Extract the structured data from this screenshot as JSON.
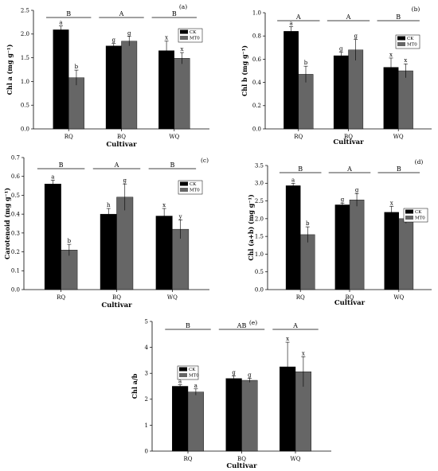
{
  "colors": {
    "CK": "#000000",
    "MT0": "#666666"
  },
  "chart_data": [
    {
      "type": "bar",
      "panel": "(a)",
      "ylabel": "Chl a (mg g⁻¹)",
      "xlabel": "Cultivar",
      "categories": [
        "RQ",
        "BQ",
        "WQ"
      ],
      "ylim": [
        0,
        2.5
      ],
      "yticks": [
        "0.0",
        "0.5",
        "1.0",
        "1.5",
        "2.0",
        "2.5"
      ],
      "legend": "right",
      "series": [
        {
          "name": "CK",
          "values": [
            2.09,
            1.75,
            1.65
          ],
          "errors": [
            0.08,
            0.05,
            0.2
          ],
          "letters": [
            "a",
            "g",
            "x"
          ]
        },
        {
          "name": "MT0",
          "values": [
            1.08,
            1.85,
            1.49
          ],
          "errors": [
            0.16,
            0.1,
            0.12
          ],
          "letters": [
            "b",
            "g",
            "x"
          ]
        }
      ],
      "group_letters": [
        "B",
        "A",
        "B"
      ]
    },
    {
      "type": "bar",
      "panel": "(b)",
      "ylabel": "Chl b (mg g⁻¹)",
      "xlabel": "Cultivar",
      "categories": [
        "RQ",
        "BQ",
        "WQ"
      ],
      "ylim": [
        0,
        1.0
      ],
      "yticks": [
        "0.0",
        "0.2",
        "0.4",
        "0.6",
        "0.8",
        "1.0"
      ],
      "legend": "right",
      "series": [
        {
          "name": "CK",
          "values": [
            0.84,
            0.63,
            0.53
          ],
          "errors": [
            0.04,
            0.03,
            0.08
          ],
          "letters": [
            "a",
            "g",
            "x"
          ]
        },
        {
          "name": "MT0",
          "values": [
            0.47,
            0.68,
            0.5
          ],
          "errors": [
            0.07,
            0.09,
            0.06
          ],
          "letters": [
            "b",
            "g",
            "x"
          ]
        }
      ],
      "group_letters": [
        "A",
        "A",
        "B"
      ]
    },
    {
      "type": "bar",
      "panel": "(c)",
      "ylabel": "Carotenoid (mg g⁻¹)",
      "xlabel": "Cultivar",
      "categories": [
        "RQ",
        "BQ",
        "WQ"
      ],
      "ylim": [
        0,
        0.7
      ],
      "yticks": [
        "0.0",
        "0.1",
        "0.2",
        "0.3",
        "0.4",
        "0.5",
        "0.6",
        "0.7"
      ],
      "legend": "right",
      "series": [
        {
          "name": "CK",
          "values": [
            0.56,
            0.4,
            0.39
          ],
          "errors": [
            0.02,
            0.03,
            0.04
          ],
          "letters": [
            "a",
            "h",
            "x"
          ]
        },
        {
          "name": "MT0",
          "values": [
            0.21,
            0.49,
            0.32
          ],
          "errors": [
            0.03,
            0.07,
            0.05
          ],
          "letters": [
            "b",
            "g",
            "y"
          ]
        }
      ],
      "group_letters": [
        "B",
        "A",
        "B"
      ]
    },
    {
      "type": "bar",
      "panel": "(d)",
      "ylabel": "Chl (a+b) (mg g⁻¹)",
      "xlabel": "Cultivar",
      "categories": [
        "RQ",
        "BQ",
        "WQ"
      ],
      "ylim": [
        0,
        3.5
      ],
      "yticks": [
        "0.0",
        "0.5",
        "1.0",
        "1.5",
        "2.0",
        "2.5",
        "3.0",
        "3.5"
      ],
      "legend": "right",
      "series": [
        {
          "name": "CK",
          "values": [
            2.93,
            2.39,
            2.18
          ],
          "errors": [
            0.07,
            0.05,
            0.17
          ],
          "letters": [
            "a",
            "g",
            "x"
          ]
        },
        {
          "name": "MT0",
          "values": [
            1.55,
            2.53,
            2.0
          ],
          "errors": [
            0.22,
            0.18,
            0.13
          ],
          "letters": [
            "b",
            "g",
            "x"
          ]
        }
      ],
      "group_letters": [
        "B",
        "A",
        "B"
      ]
    },
    {
      "type": "bar",
      "panel": "(e)",
      "ylabel": "Chl a/b",
      "xlabel": "Cultivar",
      "categories": [
        "RQ",
        "BQ",
        "WQ"
      ],
      "ylim": [
        0,
        5
      ],
      "yticks": [
        "0",
        "1",
        "2",
        "3",
        "4",
        "5"
      ],
      "legend": "left",
      "series": [
        {
          "name": "CK",
          "values": [
            2.5,
            2.8,
            3.25
          ],
          "errors": [
            0.06,
            0.1,
            0.95
          ],
          "letters": [
            "a",
            "g",
            "x"
          ]
        },
        {
          "name": "MT0",
          "values": [
            2.28,
            2.73,
            3.06
          ],
          "errors": [
            0.12,
            0.08,
            0.58
          ],
          "letters": [
            "a",
            "g",
            "x"
          ]
        }
      ],
      "group_letters": [
        "B",
        "AB",
        "A"
      ]
    }
  ]
}
